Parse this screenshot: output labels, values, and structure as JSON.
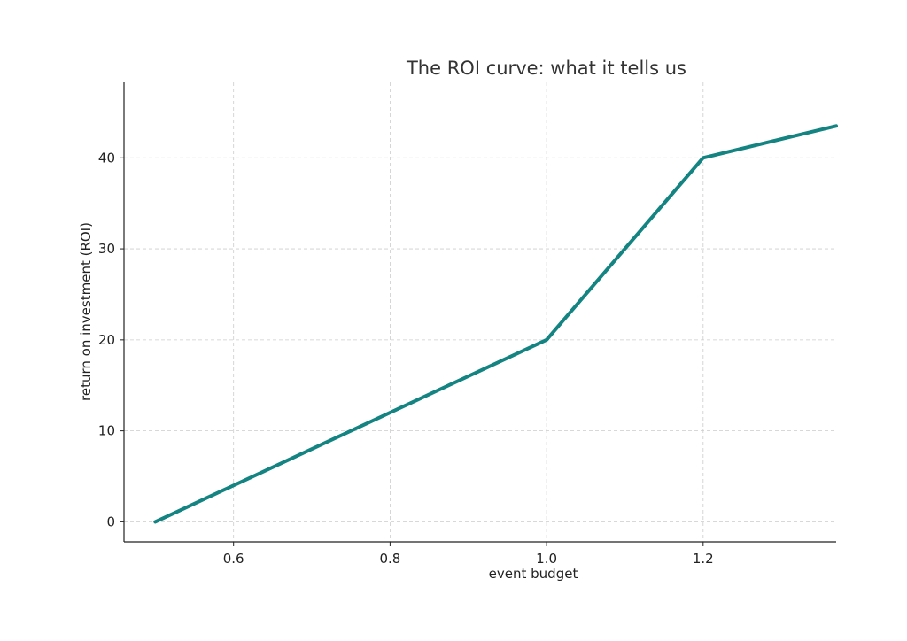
{
  "chart_data": {
    "type": "line",
    "title": "The ROI curve: what it tells us",
    "xlabel": "event budget",
    "ylabel": "return on investment (ROI)",
    "x": [
      0.5,
      1.0,
      1.2,
      1.37
    ],
    "series": [
      {
        "values": [
          0,
          20,
          40,
          43.5
        ],
        "color": "#138481"
      }
    ],
    "xlim": [
      0.46,
      1.37
    ],
    "ylim": [
      -2.2,
      48.3
    ],
    "xticks": [
      0.6,
      0.8,
      1.0,
      1.2
    ],
    "xtick_labels": [
      "0.6",
      "0.8",
      "1.0",
      "1.2"
    ],
    "yticks": [
      0,
      10,
      20,
      30,
      40
    ],
    "ytick_labels": [
      "0",
      "10",
      "20",
      "30",
      "40"
    ],
    "grid": true,
    "grid_style": "dashed",
    "legend": "none"
  }
}
